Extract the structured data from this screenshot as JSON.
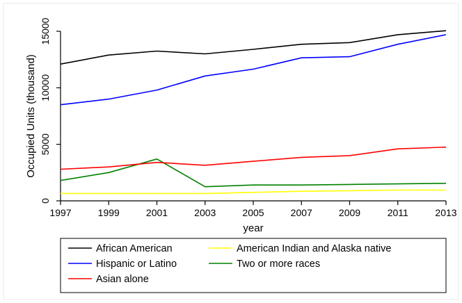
{
  "chart_data": {
    "type": "line",
    "title": "",
    "xlabel": "year",
    "ylabel": "Occupied Units (thousand)",
    "xlim": [
      1997,
      2013
    ],
    "ylim": [
      0,
      15000
    ],
    "x_ticks": [
      1997,
      1999,
      2001,
      2003,
      2005,
      2007,
      2009,
      2011,
      2013
    ],
    "y_ticks": [
      0,
      5000,
      10000,
      15000
    ],
    "x_tick_labels": [
      "1997",
      "1999",
      "2001",
      "2003",
      "2005",
      "2007",
      "2009",
      "2011",
      "2013"
    ],
    "y_tick_labels": [
      "0",
      "5000",
      "10000",
      "15000"
    ],
    "grid": false,
    "legend_position": "bottom",
    "x": [
      1997,
      1999,
      2001,
      2003,
      2005,
      2007,
      2009,
      2011,
      2013
    ],
    "series": [
      {
        "name": "African American",
        "color": "#000000",
        "values": [
          12100,
          12900,
          13250,
          13000,
          13400,
          13850,
          14000,
          14700,
          15050
        ]
      },
      {
        "name": "Hispanic or Latino",
        "color": "#0000ff",
        "values": [
          8500,
          9000,
          9800,
          11050,
          11650,
          12650,
          12750,
          13850,
          14700
        ]
      },
      {
        "name": "Asian alone",
        "color": "#ff0000",
        "values": [
          2800,
          3000,
          3400,
          3150,
          3500,
          3850,
          4000,
          4600,
          4750
        ]
      },
      {
        "name": "American Indian and Alaska native",
        "color": "#ffff00",
        "values": [
          650,
          650,
          650,
          650,
          750,
          850,
          900,
          950,
          950
        ]
      },
      {
        "name": "Two or more races",
        "color": "#008000",
        "values": [
          1800,
          2500,
          3700,
          1250,
          1400,
          1400,
          1450,
          1500,
          1550
        ]
      }
    ],
    "legend_layout": [
      [
        "African American",
        "American Indian and Alaska native"
      ],
      [
        "Hispanic or Latino",
        "Two or more races"
      ],
      [
        "Asian alone"
      ]
    ]
  }
}
